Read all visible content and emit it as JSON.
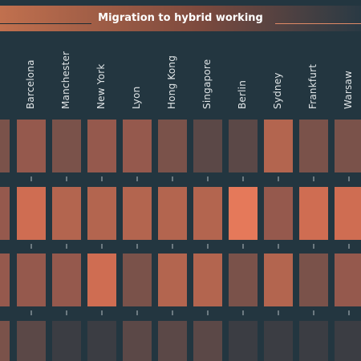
{
  "title": "Migration to hybrid working",
  "cities": [
    "Barcelona",
    "Manchester",
    "New York",
    "Lyon",
    "Hong Kong",
    "Singapore",
    "Berlin",
    "Sydney",
    "Frankfurt",
    "Warsaw"
  ],
  "colors": {
    "background": "#233640",
    "c1": "#3b3d43",
    "c2": "#5b4847",
    "c3": "#7a524a",
    "c4": "#95594d",
    "c5": "#b3654f",
    "c6": "#cf6d52",
    "c7": "#e5795a"
  },
  "chart_data": {
    "type": "heatmap",
    "title": "Migration to hybrid working",
    "x_categories": [
      "",
      "Barcelona",
      "Manchester",
      "New York",
      "Lyon",
      "Hong Kong",
      "Singapore",
      "Berlin",
      "Sydney",
      "Frankfurt",
      "Warsaw"
    ],
    "rows": 4,
    "scale": "1 = darkest, 7 = brightest orange",
    "values": [
      [
        3,
        4,
        3,
        4,
        4,
        3,
        2,
        2,
        5,
        3,
        3
      ],
      [
        4,
        6,
        5,
        5,
        5,
        5,
        5,
        7,
        4,
        6,
        6
      ],
      [
        4,
        4,
        4,
        6,
        3,
        5,
        5,
        3,
        5,
        3,
        4
      ],
      [
        3,
        2,
        1,
        1,
        2,
        2,
        2,
        1,
        1,
        1,
        1
      ]
    ]
  }
}
